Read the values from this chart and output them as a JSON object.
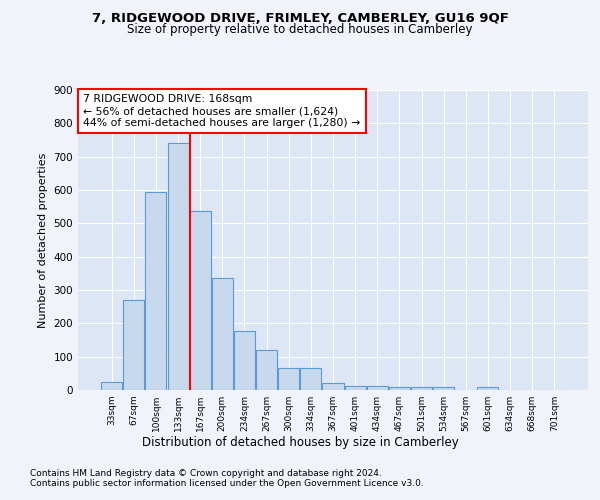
{
  "title1": "7, RIDGEWOOD DRIVE, FRIMLEY, CAMBERLEY, GU16 9QF",
  "title2": "Size of property relative to detached houses in Camberley",
  "xlabel": "Distribution of detached houses by size in Camberley",
  "ylabel": "Number of detached properties",
  "categories": [
    "33sqm",
    "67sqm",
    "100sqm",
    "133sqm",
    "167sqm",
    "200sqm",
    "234sqm",
    "267sqm",
    "300sqm",
    "334sqm",
    "367sqm",
    "401sqm",
    "434sqm",
    "467sqm",
    "501sqm",
    "534sqm",
    "567sqm",
    "601sqm",
    "634sqm",
    "668sqm",
    "701sqm"
  ],
  "values": [
    25,
    270,
    595,
    740,
    538,
    335,
    178,
    120,
    65,
    65,
    22,
    12,
    12,
    8,
    8,
    8,
    0,
    10,
    0,
    0,
    0
  ],
  "bar_color": "#c9d9ed",
  "bar_edge_color": "#5b9bd5",
  "background_color": "#dce6f5",
  "vline_x_index": 4,
  "ylim": [
    0,
    900
  ],
  "yticks": [
    0,
    100,
    200,
    300,
    400,
    500,
    600,
    700,
    800,
    900
  ],
  "annotation_text_line1": "7 RIDGEWOOD DRIVE: 168sqm",
  "annotation_text_line2": "← 56% of detached houses are smaller (1,624)",
  "annotation_text_line3": "44% of semi-detached houses are larger (1,280) →",
  "footnote1": "Contains HM Land Registry data © Crown copyright and database right 2024.",
  "footnote2": "Contains public sector information licensed under the Open Government Licence v3.0."
}
